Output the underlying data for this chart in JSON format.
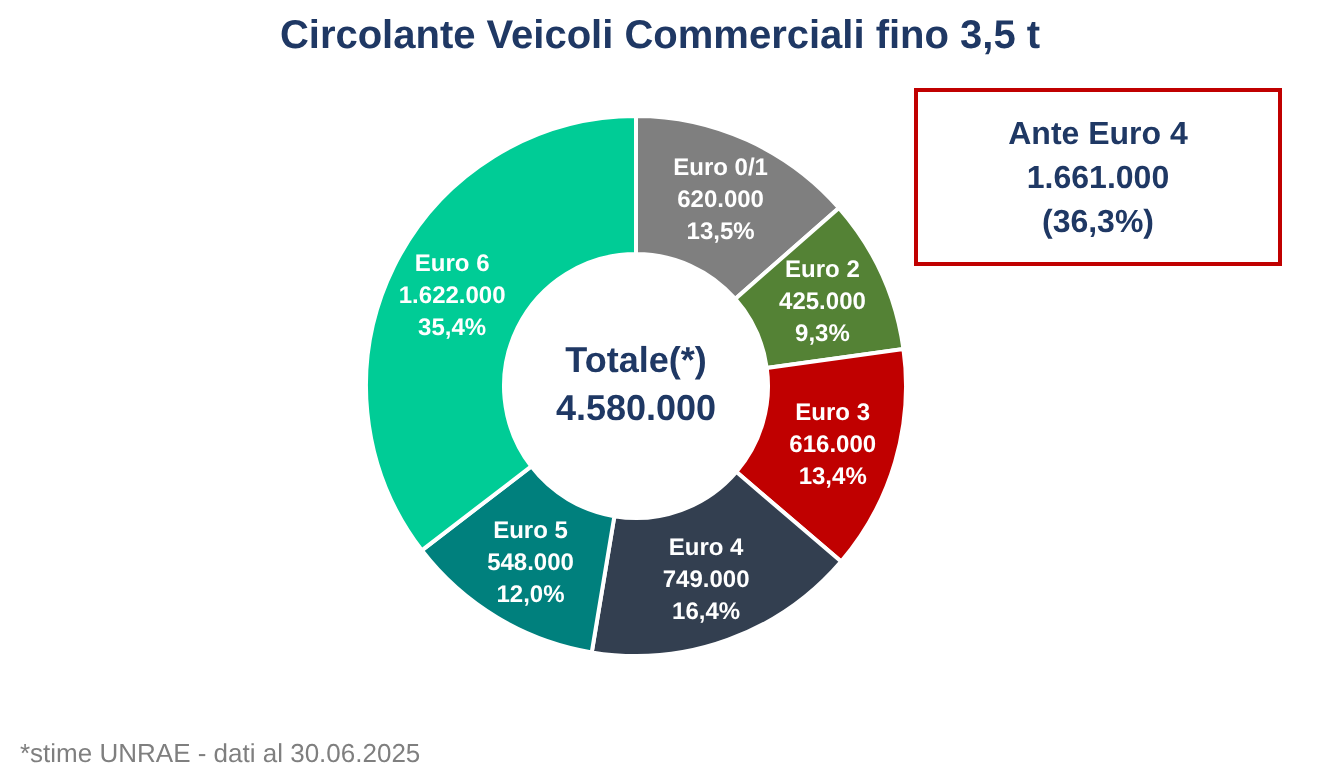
{
  "chart_data": {
    "type": "donut",
    "title": "Circolante Veicoli Commerciali fino 3,5 t",
    "categories": [
      "Euro 0/1",
      "Euro 2",
      "Euro 3",
      "Euro 4",
      "Euro 5",
      "Euro 6"
    ],
    "values": [
      620000,
      425000,
      616000,
      749000,
      548000,
      1622000
    ],
    "value_labels": [
      "620.000\n13,5%",
      "425.000\n9,3%",
      "616.000\n13,4%",
      "749.000\n16,4%",
      "548.000\n12,0%",
      "1.622.000\n35,4%"
    ],
    "colors": [
      "#7f7f7f",
      "#548235",
      "#c00000",
      "#333f50",
      "#00807d",
      "#00cc96"
    ],
    "annotations": [
      "Totale(*)\n4.580.000",
      "Ante Euro 4\n1.661.000\n(36,3%)",
      "*stime UNRAE - dati al 30.06.2025"
    ]
  }
}
